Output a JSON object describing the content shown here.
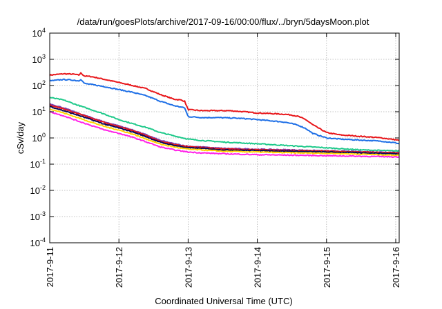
{
  "chart_data": {
    "type": "line",
    "title": "/data/run/goesPlots/archive/2017-09-16/00:00/flux/../bryn/5daysMoon.plot",
    "xlabel": "Coordinated Universal Time (UTC)",
    "ylabel": "cSv/day",
    "x_tick_labels": [
      "2017-9-11",
      "2017-9-12",
      "2017-9-13",
      "2017-9-14",
      "2017-9-15",
      "2017-9-16"
    ],
    "x_range_days": [
      0,
      5.05
    ],
    "y_scale": "log",
    "ylim": [
      0.0001,
      10000
    ],
    "y_ticks": [
      {
        "base": "10",
        "exp": "-4",
        "value": 0.0001
      },
      {
        "base": "10",
        "exp": "-3",
        "value": 0.001
      },
      {
        "base": "10",
        "exp": "-2",
        "value": 0.01
      },
      {
        "base": "10",
        "exp": "-1",
        "value": 0.1
      },
      {
        "base": "10",
        "exp": "0",
        "value": 1
      },
      {
        "base": "10",
        "exp": "1",
        "value": 10
      },
      {
        "base": "10",
        "exp": "2",
        "value": 100
      },
      {
        "base": "10",
        "exp": "3",
        "value": 1000
      },
      {
        "base": "10",
        "exp": "4",
        "value": 10000
      }
    ],
    "grid": true,
    "legend": "none",
    "series": [
      {
        "color": "#e8161a",
        "x": [
          0,
          0.2,
          0.35,
          0.42,
          0.45,
          0.5,
          0.6,
          0.8,
          1.0,
          1.2,
          1.4,
          1.6,
          1.8,
          1.9,
          1.95,
          2.0,
          2.2,
          2.4,
          2.6,
          2.8,
          3.0,
          3.2,
          3.4,
          3.5,
          3.6,
          3.7,
          3.8,
          4.0,
          4.2,
          4.4,
          4.6,
          4.8,
          5.0,
          5.05
        ],
        "y": [
          250,
          280,
          270,
          250,
          300,
          230,
          220,
          170,
          130,
          100,
          75,
          45,
          30,
          28,
          25,
          12,
          11,
          11,
          11,
          10,
          9,
          8.5,
          8,
          7.5,
          6.5,
          5,
          3.2,
          1.6,
          1.3,
          1.2,
          1.1,
          1.0,
          0.85,
          0.8
        ]
      },
      {
        "color": "#1e6fe6",
        "x": [
          0,
          0.2,
          0.35,
          0.42,
          0.45,
          0.5,
          0.6,
          0.8,
          1.0,
          1.2,
          1.4,
          1.6,
          1.8,
          1.9,
          1.95,
          2.0,
          2.2,
          2.4,
          2.6,
          2.8,
          3.0,
          3.2,
          3.4,
          3.5,
          3.6,
          3.7,
          3.8,
          4.0,
          4.2,
          4.4,
          4.6,
          4.8,
          5.0,
          5.05
        ],
        "y": [
          150,
          170,
          160,
          150,
          175,
          120,
          110,
          90,
          70,
          55,
          40,
          25,
          17,
          15,
          14,
          6.5,
          6,
          6,
          5.8,
          5.5,
          5,
          4.5,
          4,
          3.5,
          3,
          2.3,
          1.5,
          1.0,
          0.9,
          0.85,
          0.8,
          0.75,
          0.65,
          0.6
        ]
      },
      {
        "color": "#1ec98a",
        "x": [
          0,
          0.2,
          0.4,
          0.6,
          0.8,
          1.0,
          1.2,
          1.4,
          1.6,
          1.8,
          2.0,
          2.2,
          2.5,
          3.0,
          3.5,
          4.0,
          4.5,
          5.0,
          5.05
        ],
        "y": [
          35,
          28,
          18,
          12,
          8,
          5,
          3.5,
          2.5,
          1.6,
          1.2,
          0.9,
          0.8,
          0.7,
          0.6,
          0.5,
          0.42,
          0.35,
          0.32,
          0.32
        ]
      },
      {
        "color": "#7a3fb0",
        "x": [
          0,
          0.2,
          0.4,
          0.6,
          0.8,
          1.0,
          1.2,
          1.4,
          1.6,
          1.8,
          2.0,
          2.2,
          2.5,
          3.0,
          3.5,
          4.0,
          4.5,
          5.0,
          5.05
        ],
        "y": [
          20,
          14,
          9,
          6,
          4,
          2.9,
          2.0,
          1.3,
          0.8,
          0.6,
          0.48,
          0.45,
          0.4,
          0.37,
          0.35,
          0.32,
          0.3,
          0.28,
          0.27
        ]
      },
      {
        "color": "#e8161a",
        "x": [
          0,
          0.2,
          0.4,
          0.6,
          0.8,
          1.0,
          1.2,
          1.4,
          1.6,
          1.8,
          2.0,
          2.2,
          2.5,
          3.0,
          3.5,
          4.0,
          4.5,
          5.0,
          5.05
        ],
        "y": [
          18,
          13,
          8.5,
          5.8,
          3.8,
          2.7,
          1.9,
          1.2,
          0.75,
          0.56,
          0.46,
          0.43,
          0.38,
          0.35,
          0.33,
          0.31,
          0.29,
          0.27,
          0.26
        ]
      },
      {
        "color": "#0a0a5a",
        "x": [
          0,
          0.2,
          0.4,
          0.6,
          0.8,
          1.0,
          1.2,
          1.4,
          1.6,
          1.8,
          2.0,
          2.2,
          2.5,
          3.0,
          3.5,
          4.0,
          4.5,
          5.0,
          5.05
        ],
        "y": [
          16,
          11,
          7.5,
          5.0,
          3.3,
          2.4,
          1.7,
          1.1,
          0.68,
          0.52,
          0.42,
          0.4,
          0.35,
          0.33,
          0.31,
          0.29,
          0.27,
          0.25,
          0.24
        ]
      },
      {
        "color": "#ffd400",
        "x": [
          0,
          0.2,
          0.4,
          0.6,
          0.8,
          1.0,
          1.2,
          1.4,
          1.6,
          1.8,
          2.0,
          2.2,
          2.5,
          3.0,
          3.5,
          4.0,
          4.5,
          5.0,
          5.05
        ],
        "y": [
          13,
          9,
          6,
          4.0,
          2.7,
          2.0,
          1.4,
          0.9,
          0.58,
          0.45,
          0.37,
          0.35,
          0.31,
          0.29,
          0.27,
          0.26,
          0.24,
          0.22,
          0.22
        ]
      },
      {
        "color": "#ff22e8",
        "x": [
          0,
          0.2,
          0.4,
          0.6,
          0.8,
          1.0,
          1.2,
          1.4,
          1.6,
          1.8,
          2.0,
          2.2,
          2.5,
          3.0,
          3.5,
          4.0,
          4.5,
          5.0,
          5.05
        ],
        "y": [
          10,
          7,
          4.5,
          3.0,
          2.0,
          1.5,
          1.05,
          0.7,
          0.45,
          0.35,
          0.29,
          0.27,
          0.25,
          0.23,
          0.22,
          0.21,
          0.2,
          0.19,
          0.19
        ]
      }
    ]
  }
}
